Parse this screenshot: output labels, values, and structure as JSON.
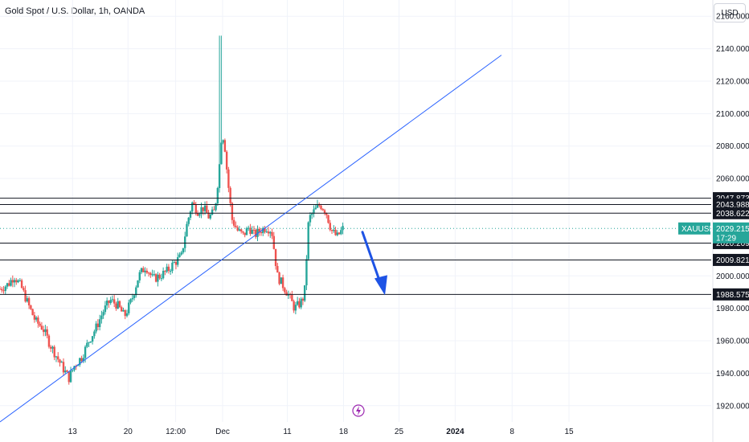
{
  "header": {
    "title": "Gold Spot / U.S. Dollar, 1h, OANDA",
    "currency": "USD"
  },
  "chart_data": {
    "type": "candlestick",
    "title": "Gold Spot / U.S. Dollar, 1h, OANDA",
    "symbol": "XAUUSD",
    "ylim": [
      1910,
      2170
    ],
    "y_ticks": [
      "2160.000",
      "2140.000",
      "2120.000",
      "2100.000",
      "2080.000",
      "2060.000",
      "2000.000",
      "1980.000",
      "1960.000",
      "1940.000",
      "1920.000"
    ],
    "x_ticks": [
      "13",
      "20",
      "12:00",
      "Dec",
      "11",
      "18",
      "25",
      "2024",
      "8",
      "15"
    ],
    "x_tick_emphasis": [
      "2024"
    ],
    "current_price": {
      "symbol": "XAUUSD",
      "value": 2029.215,
      "label": "2029.215",
      "countdown": "17:29",
      "color": "#26a69a"
    },
    "horizontal_levels": [
      {
        "value": 2047.873,
        "label": "2047.873"
      },
      {
        "value": 2043.988,
        "label": "2043.988"
      },
      {
        "value": 2038.622,
        "label": "2038.622"
      },
      {
        "value": 2020.209,
        "label": "2020.209"
      },
      {
        "value": 2009.821,
        "label": "2009.821"
      },
      {
        "value": 1988.575,
        "label": "1988.575"
      }
    ],
    "trendline": {
      "from": {
        "x": 0,
        "y": 1910
      },
      "to": {
        "x": 0.705,
        "y": 2136
      },
      "color": "#2962ff"
    },
    "projection_arrow": {
      "color": "#1e53e5",
      "target_price": 1988.575
    },
    "candles_close_path": [
      [
        0.0,
        1992
      ],
      [
        0.012,
        1995
      ],
      [
        0.02,
        2000
      ],
      [
        0.03,
        1993
      ],
      [
        0.04,
        1982
      ],
      [
        0.05,
        1972
      ],
      [
        0.06,
        1968
      ],
      [
        0.07,
        1958
      ],
      [
        0.08,
        1950
      ],
      [
        0.09,
        1942
      ],
      [
        0.097,
        1937
      ],
      [
        0.105,
        1945
      ],
      [
        0.115,
        1950
      ],
      [
        0.125,
        1960
      ],
      [
        0.135,
        1968
      ],
      [
        0.145,
        1978
      ],
      [
        0.155,
        1985
      ],
      [
        0.165,
        1982
      ],
      [
        0.175,
        1975
      ],
      [
        0.185,
        1985
      ],
      [
        0.195,
        2000
      ],
      [
        0.205,
        2006
      ],
      [
        0.215,
        1998
      ],
      [
        0.225,
        2000
      ],
      [
        0.235,
        2003
      ],
      [
        0.245,
        2008
      ],
      [
        0.255,
        2012
      ],
      [
        0.262,
        2030
      ],
      [
        0.27,
        2045
      ],
      [
        0.278,
        2040
      ],
      [
        0.286,
        2042
      ],
      [
        0.294,
        2036
      ],
      [
        0.302,
        2040
      ],
      [
        0.308,
        2065
      ],
      [
        0.312,
        2090
      ],
      [
        0.316,
        2080
      ],
      [
        0.32,
        2060
      ],
      [
        0.326,
        2035
      ],
      [
        0.334,
        2028
      ],
      [
        0.342,
        2025
      ],
      [
        0.35,
        2030
      ],
      [
        0.358,
        2025
      ],
      [
        0.366,
        2028
      ],
      [
        0.374,
        2030
      ],
      [
        0.382,
        2028
      ],
      [
        0.39,
        2000
      ],
      [
        0.398,
        1994
      ],
      [
        0.406,
        1988
      ],
      [
        0.414,
        1980
      ],
      [
        0.422,
        1983
      ],
      [
        0.428,
        1988
      ],
      [
        0.434,
        2035
      ],
      [
        0.442,
        2040
      ],
      [
        0.45,
        2044
      ],
      [
        0.458,
        2040
      ],
      [
        0.466,
        2028
      ],
      [
        0.474,
        2024
      ],
      [
        0.482,
        2029
      ]
    ],
    "events": [
      {
        "icon": "lightning-icon",
        "color": "#9c27b0"
      }
    ]
  }
}
